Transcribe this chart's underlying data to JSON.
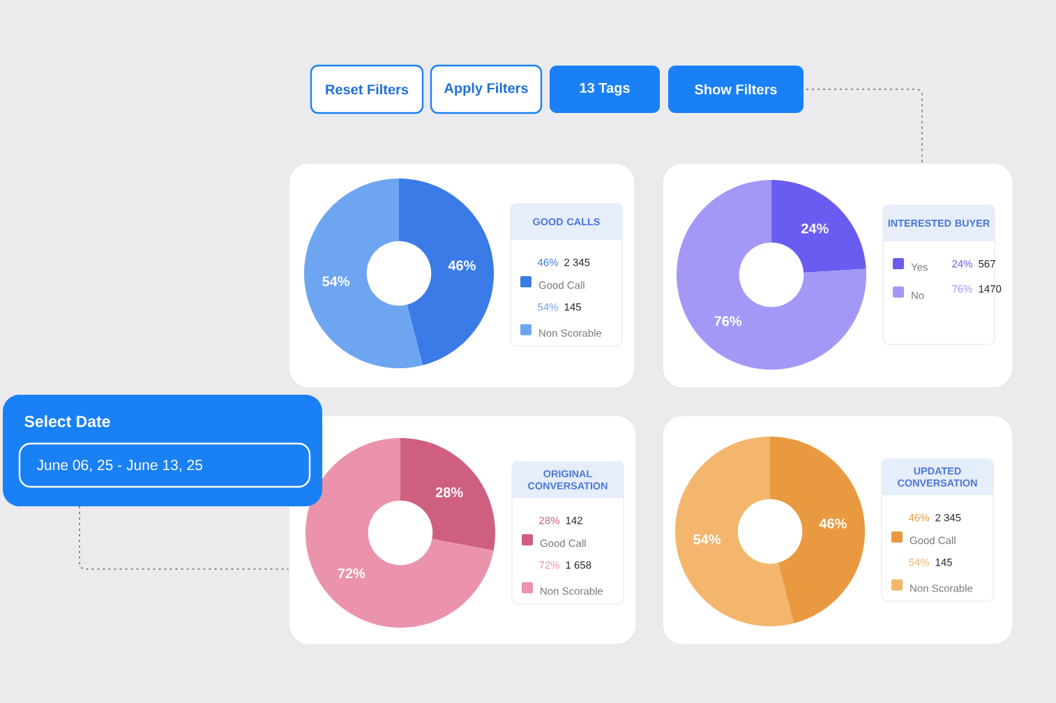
{
  "chart_data": [
    {
      "type": "other",
      "annotations": [
        "Reset Filters",
        "Apply Filters",
        "13 Tags",
        "Show Filters"
      ]
    },
    {
      "type": "donut",
      "title": "GOOD CALLS",
      "categories": [
        "Good Call",
        "Non Scorable"
      ],
      "values": [
        46,
        54
      ],
      "colors": [
        "#3b7be8",
        "#6ea5f0"
      ],
      "value_labels": [
        "46%",
        "54%"
      ],
      "annotations": [
        "2 345",
        "145"
      ],
      "legend": "right"
    },
    {
      "type": "donut",
      "title": "INTERESTED BUYER",
      "categories": [
        "Yes",
        "No"
      ],
      "values": [
        24,
        76
      ],
      "colors": [
        "#6b5cf1",
        "#a498f7"
      ],
      "value_labels": [
        "24%",
        "76%"
      ],
      "annotations": [
        "567",
        "1470"
      ],
      "legend": "right"
    },
    {
      "type": "other",
      "title": "Select Date",
      "annotations": [
        "June 06, 25 - June 13, 25"
      ]
    },
    {
      "type": "donut",
      "title": "ORIGINAL CONVERSATION",
      "categories": [
        "Good Call",
        "Non Scorable"
      ],
      "values": [
        28,
        72
      ],
      "colors": [
        "#cf5f80",
        "#eb93ac"
      ],
      "value_labels": [
        "28%",
        "72%"
      ],
      "annotations": [
        "142",
        "1 658"
      ],
      "legend": "right"
    },
    {
      "type": "donut",
      "title": "UPDATED CONVERSATION",
      "categories": [
        "Good Call",
        "Non Scorable"
      ],
      "values": [
        46,
        54
      ],
      "colors": [
        "#e99a40",
        "#f3b66c"
      ],
      "value_labels": [
        "46%",
        "54%"
      ],
      "annotations": [
        "2 345",
        "145"
      ],
      "legend": "right"
    }
  ]
}
